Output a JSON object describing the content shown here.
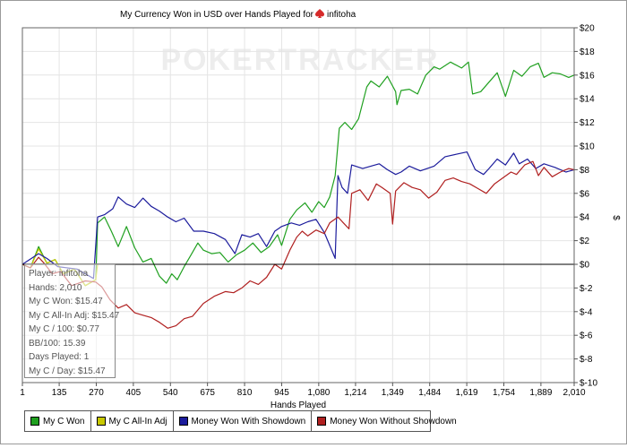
{
  "chart_data": {
    "type": "line",
    "title": "My Currency Won in USD over Hands Played for",
    "player": "infitoha",
    "watermark": "POKERTRACKER",
    "xlabel": "Hands Played",
    "ylabel": "$",
    "xlim": [
      1,
      2010
    ],
    "ylim": [
      -10,
      20
    ],
    "x_ticks": [
      "1",
      "135",
      "270",
      "405",
      "540",
      "675",
      "810",
      "945",
      "1,080",
      "1,214",
      "1,349",
      "1,484",
      "1,619",
      "1,754",
      "1,889",
      "2,010"
    ],
    "y_ticks": [
      "$20",
      "$18",
      "$16",
      "$14",
      "$12",
      "$10",
      "$8",
      "$6",
      "$4",
      "$2",
      "$0",
      "$-2",
      "$-4",
      "$-6",
      "$-8",
      "$-10"
    ],
    "legend_position": "bottom",
    "series": [
      {
        "name": "My C Won",
        "color": "#20a020",
        "points": [
          [
            1,
            0
          ],
          [
            30,
            -0.3
          ],
          [
            60,
            1.5
          ],
          [
            90,
            0.1
          ],
          [
            120,
            0.4
          ],
          [
            150,
            -0.8
          ],
          [
            190,
            -0.4
          ],
          [
            230,
            -1.8
          ],
          [
            268,
            -1.3
          ],
          [
            275,
            3.5
          ],
          [
            300,
            4
          ],
          [
            325,
            2.8
          ],
          [
            350,
            1.5
          ],
          [
            380,
            3.2
          ],
          [
            410,
            1.4
          ],
          [
            440,
            0.2
          ],
          [
            470,
            0.5
          ],
          [
            500,
            -1
          ],
          [
            525,
            -1.6
          ],
          [
            545,
            -0.8
          ],
          [
            565,
            -1.3
          ],
          [
            590,
            -0.2
          ],
          [
            615,
            0.8
          ],
          [
            640,
            1.8
          ],
          [
            660,
            1.2
          ],
          [
            690,
            0.9
          ],
          [
            720,
            1
          ],
          [
            750,
            0.2
          ],
          [
            780,
            0.8
          ],
          [
            810,
            1.2
          ],
          [
            840,
            1.8
          ],
          [
            870,
            1
          ],
          [
            900,
            1.5
          ],
          [
            930,
            2.5
          ],
          [
            945,
            1.6
          ],
          [
            975,
            3.8
          ],
          [
            1000,
            4.6
          ],
          [
            1030,
            5.2
          ],
          [
            1055,
            4.4
          ],
          [
            1080,
            5.3
          ],
          [
            1100,
            4.8
          ],
          [
            1120,
            5.7
          ],
          [
            1140,
            7.5
          ],
          [
            1155,
            11.5
          ],
          [
            1175,
            12
          ],
          [
            1200,
            11.4
          ],
          [
            1225,
            12.3
          ],
          [
            1255,
            15
          ],
          [
            1270,
            15.5
          ],
          [
            1300,
            15
          ],
          [
            1330,
            15.9
          ],
          [
            1360,
            14.6
          ],
          [
            1365,
            13.5
          ],
          [
            1380,
            14.7
          ],
          [
            1410,
            14.8
          ],
          [
            1440,
            14.4
          ],
          [
            1470,
            16
          ],
          [
            1500,
            16.7
          ],
          [
            1520,
            16.5
          ],
          [
            1560,
            17.1
          ],
          [
            1600,
            16.6
          ],
          [
            1625,
            17.1
          ],
          [
            1640,
            14.4
          ],
          [
            1670,
            14.6
          ],
          [
            1700,
            15.4
          ],
          [
            1730,
            16.2
          ],
          [
            1760,
            14.2
          ],
          [
            1790,
            16.4
          ],
          [
            1820,
            15.9
          ],
          [
            1850,
            16.7
          ],
          [
            1880,
            17
          ],
          [
            1900,
            15.8
          ],
          [
            1930,
            16.2
          ],
          [
            1960,
            16.1
          ],
          [
            1990,
            15.8
          ],
          [
            2010,
            16
          ]
        ]
      },
      {
        "name": "My C All-In Adj",
        "color": "#c8c800",
        "points": [
          [
            1,
            0
          ],
          [
            30,
            -0.3
          ],
          [
            60,
            1.3
          ],
          [
            90,
            0.1
          ],
          [
            120,
            0.4
          ],
          [
            150,
            -0.8
          ],
          [
            190,
            -0.4
          ],
          [
            230,
            -1.8
          ],
          [
            268,
            -1.3
          ],
          [
            275,
            0
          ]
        ]
      },
      {
        "name": "Money Won With Showdown",
        "color": "#1c1c9c",
        "points": [
          [
            1,
            0
          ],
          [
            60,
            0.9
          ],
          [
            90,
            0.5
          ],
          [
            130,
            -0.2
          ],
          [
            200,
            -0.4
          ],
          [
            260,
            -1.2
          ],
          [
            275,
            4
          ],
          [
            300,
            4.2
          ],
          [
            330,
            4.7
          ],
          [
            350,
            5.7
          ],
          [
            380,
            5.1
          ],
          [
            410,
            4.8
          ],
          [
            440,
            5.6
          ],
          [
            470,
            4.9
          ],
          [
            500,
            4.5
          ],
          [
            530,
            4
          ],
          [
            560,
            3.6
          ],
          [
            590,
            3.9
          ],
          [
            625,
            2.8
          ],
          [
            660,
            2.8
          ],
          [
            700,
            2.6
          ],
          [
            740,
            2.1
          ],
          [
            775,
            0.9
          ],
          [
            800,
            2.5
          ],
          [
            830,
            2.3
          ],
          [
            860,
            2.6
          ],
          [
            890,
            1.5
          ],
          [
            920,
            2.8
          ],
          [
            945,
            3.2
          ],
          [
            980,
            3.5
          ],
          [
            1010,
            3.3
          ],
          [
            1040,
            3.6
          ],
          [
            1070,
            3.8
          ],
          [
            1100,
            2.7
          ],
          [
            1140,
            0.5
          ],
          [
            1150,
            7.5
          ],
          [
            1165,
            6.5
          ],
          [
            1185,
            6
          ],
          [
            1200,
            8.4
          ],
          [
            1240,
            8.1
          ],
          [
            1270,
            8.3
          ],
          [
            1300,
            8.5
          ],
          [
            1330,
            8
          ],
          [
            1360,
            7.6
          ],
          [
            1380,
            7.8
          ],
          [
            1410,
            8.3
          ],
          [
            1450,
            7.9
          ],
          [
            1500,
            8.3
          ],
          [
            1540,
            9.1
          ],
          [
            1580,
            9.3
          ],
          [
            1620,
            9.5
          ],
          [
            1650,
            8
          ],
          [
            1680,
            7.6
          ],
          [
            1700,
            8.1
          ],
          [
            1730,
            8.9
          ],
          [
            1760,
            8.4
          ],
          [
            1790,
            9.4
          ],
          [
            1810,
            8.5
          ],
          [
            1840,
            8.9
          ],
          [
            1870,
            8.1
          ],
          [
            1900,
            8.5
          ],
          [
            1940,
            8.2
          ],
          [
            1980,
            7.8
          ],
          [
            2010,
            8
          ]
        ]
      },
      {
        "name": "Money Won Without Showdown",
        "color": "#b02020",
        "points": [
          [
            1,
            0
          ],
          [
            30,
            -0.3
          ],
          [
            60,
            0.6
          ],
          [
            80,
            0.1
          ],
          [
            110,
            -0.8
          ],
          [
            140,
            -0.6
          ],
          [
            180,
            -1.8
          ],
          [
            230,
            -1.4
          ],
          [
            268,
            -1.5
          ],
          [
            290,
            -1.9
          ],
          [
            320,
            -3
          ],
          [
            350,
            -3.7
          ],
          [
            380,
            -3.4
          ],
          [
            410,
            -4.1
          ],
          [
            440,
            -4.3
          ],
          [
            470,
            -4.5
          ],
          [
            500,
            -4.9
          ],
          [
            530,
            -5.4
          ],
          [
            560,
            -5.2
          ],
          [
            590,
            -4.6
          ],
          [
            620,
            -4.4
          ],
          [
            660,
            -3.3
          ],
          [
            700,
            -2.7
          ],
          [
            740,
            -2.3
          ],
          [
            770,
            -2.4
          ],
          [
            800,
            -2
          ],
          [
            830,
            -1.4
          ],
          [
            860,
            -1.7
          ],
          [
            890,
            -1.1
          ],
          [
            920,
            0
          ],
          [
            945,
            -0.4
          ],
          [
            975,
            1.2
          ],
          [
            1000,
            2.3
          ],
          [
            1020,
            2.8
          ],
          [
            1040,
            2.4
          ],
          [
            1070,
            2.9
          ],
          [
            1100,
            2.6
          ],
          [
            1120,
            3.5
          ],
          [
            1150,
            4
          ],
          [
            1170,
            3.5
          ],
          [
            1190,
            3
          ],
          [
            1200,
            6
          ],
          [
            1230,
            6.3
          ],
          [
            1260,
            5.4
          ],
          [
            1290,
            6.8
          ],
          [
            1310,
            6.5
          ],
          [
            1340,
            6
          ],
          [
            1349,
            3.4
          ],
          [
            1360,
            6.2
          ],
          [
            1390,
            6.9
          ],
          [
            1420,
            6.5
          ],
          [
            1450,
            6.3
          ],
          [
            1480,
            5.6
          ],
          [
            1510,
            6.1
          ],
          [
            1540,
            7.1
          ],
          [
            1570,
            7.3
          ],
          [
            1600,
            7
          ],
          [
            1630,
            6.8
          ],
          [
            1660,
            6.4
          ],
          [
            1690,
            6
          ],
          [
            1720,
            6.8
          ],
          [
            1750,
            7.3
          ],
          [
            1780,
            7.8
          ],
          [
            1800,
            7.6
          ],
          [
            1830,
            8.4
          ],
          [
            1860,
            8.7
          ],
          [
            1880,
            7.5
          ],
          [
            1900,
            8.2
          ],
          [
            1930,
            7.4
          ],
          [
            1960,
            7.8
          ],
          [
            1990,
            8.1
          ],
          [
            2010,
            8
          ]
        ]
      }
    ],
    "stats": [
      "Player: infitoha",
      "Hands: 2,010",
      "My C Won: $15.47",
      "My C All-In Adj: $15.47",
      "My C / 100: $0.77",
      "BB/100: 15.39",
      "Days Played: 1",
      "My C / Day: $15.47"
    ]
  }
}
